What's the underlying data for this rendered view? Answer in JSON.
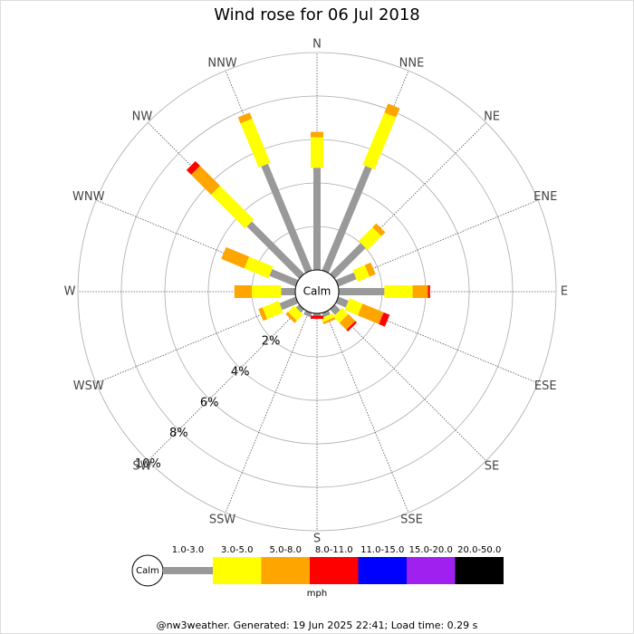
{
  "chart_data": {
    "type": "windrose",
    "title": "Wind rose for 06 Jul 2018",
    "calm_label": "Calm",
    "unit_label": "mph",
    "footer": "@nw3weather. Generated: 19 Jun 2025 22:41; Load time: 0.29 s",
    "categories": [
      "N",
      "NNE",
      "NE",
      "ENE",
      "E",
      "ESE",
      "SE",
      "SSE",
      "S",
      "SSW",
      "SW",
      "WSW",
      "W",
      "WNW",
      "NW",
      "NNW"
    ],
    "series": [
      {
        "name": "1.0-3.0",
        "color": "#999999",
        "values": [
          4.7,
          5.2,
          2.0,
          0.9,
          2.1,
          0.5,
          0.35,
          0.2,
          0.1,
          0.2,
          0.2,
          0.8,
          0.65,
          1.3,
          3.4,
          5.3
        ]
      },
      {
        "name": "3.0-5.0",
        "color": "#ffff00",
        "values": [
          1.4,
          2.6,
          0.9,
          0.6,
          1.3,
          0.65,
          0.4,
          0.2,
          0,
          0,
          0.4,
          0.8,
          1.35,
          1.2,
          2.2,
          2.2
        ]
      },
      {
        "name": "5.0-8.0",
        "color": "#ffa500",
        "values": [
          0.25,
          0.45,
          0.25,
          0.3,
          0.7,
          1.05,
          0.45,
          0.1,
          0,
          0,
          0.15,
          0.2,
          0.8,
          1.15,
          1.3,
          0.3
        ]
      },
      {
        "name": "8.0-11.0",
        "color": "#ff0000",
        "values": [
          0,
          0,
          0,
          0,
          0.1,
          0.3,
          0.1,
          0,
          0.15,
          0,
          0,
          0,
          0,
          0,
          0.3,
          0
        ]
      },
      {
        "name": "11.0-15.0",
        "color": "#0000ff",
        "values": [
          0,
          0,
          0,
          0,
          0,
          0,
          0,
          0,
          0,
          0,
          0,
          0,
          0,
          0,
          0,
          0
        ]
      },
      {
        "name": "15.0-20.0",
        "color": "#a020f0",
        "values": [
          0,
          0,
          0,
          0,
          0,
          0,
          0,
          0,
          0,
          0,
          0,
          0,
          0,
          0,
          0,
          0
        ]
      },
      {
        "name": "20.0-50.0",
        "color": "#000000",
        "values": [
          0,
          0,
          0,
          0,
          0,
          0,
          0,
          0,
          0,
          0,
          0,
          0,
          0,
          0,
          0,
          0
        ]
      }
    ],
    "rlim": [
      0,
      10
    ],
    "rticks": [
      {
        "value": 2,
        "label": "2%"
      },
      {
        "value": 4,
        "label": "4%"
      },
      {
        "value": 6,
        "label": "6%"
      },
      {
        "value": 8,
        "label": "8%"
      },
      {
        "value": 10,
        "label": "10%"
      }
    ]
  }
}
